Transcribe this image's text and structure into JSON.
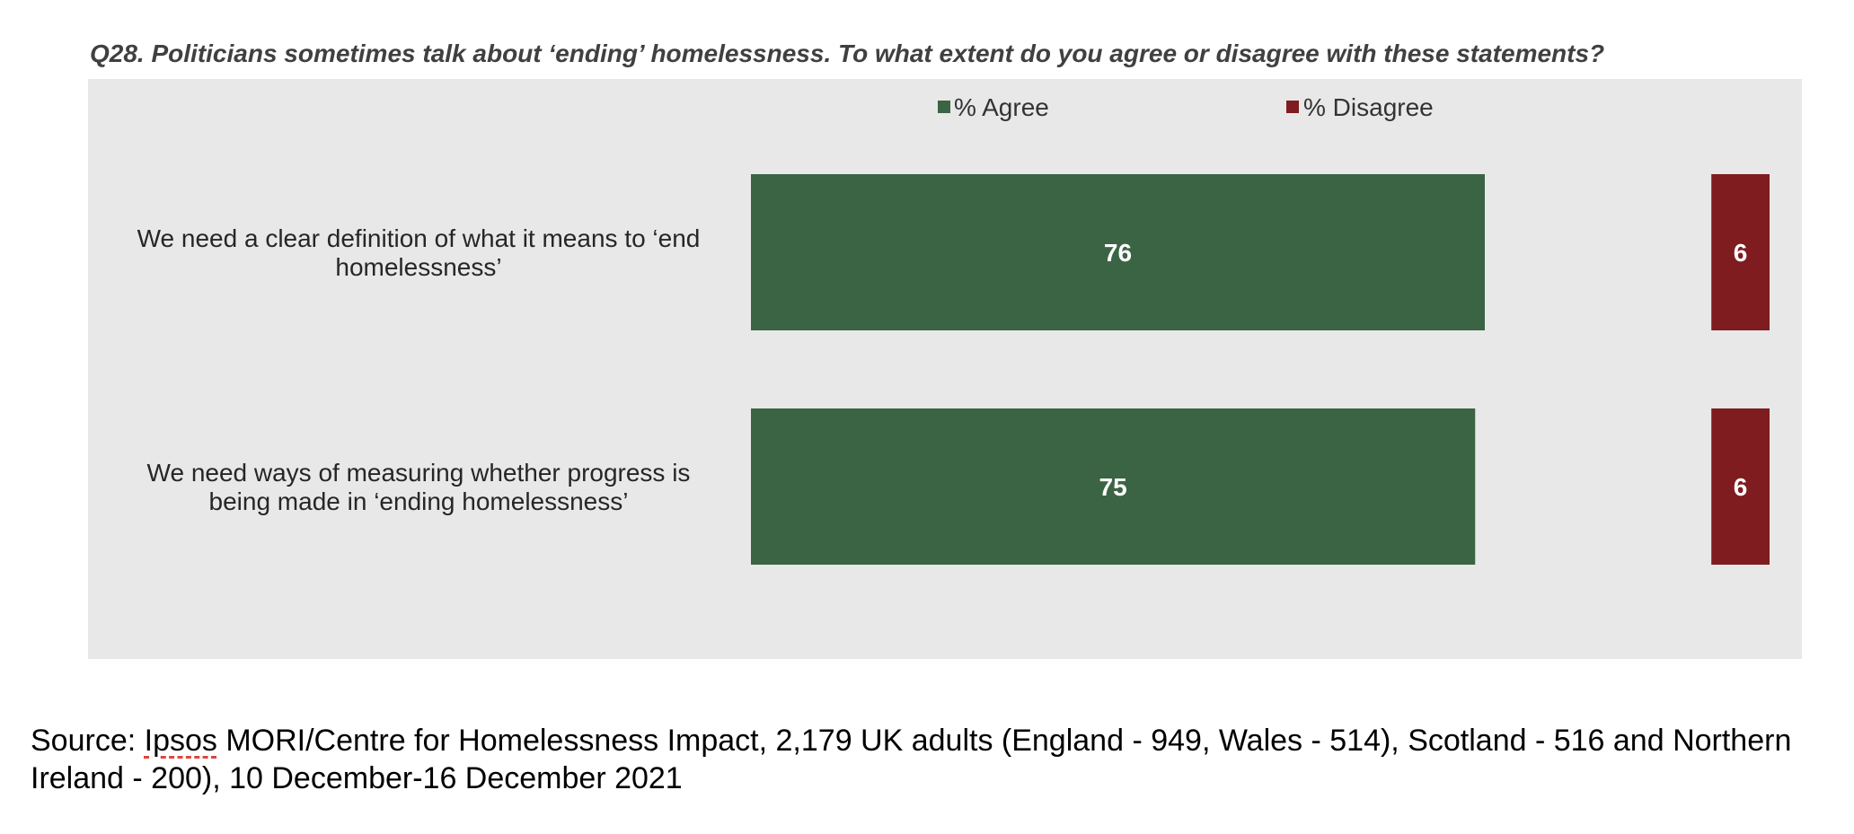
{
  "question": "Q28. Politicians sometimes talk about ‘ending’ homelessness. To what extent do you agree or disagree with these statements?",
  "chart_data": {
    "type": "bar",
    "orientation": "horizontal",
    "categories": [
      [
        "We need a clear definition of what it means to ‘end",
        "homelessness’"
      ],
      [
        "We need ways of measuring whether progress is",
        "being made in ‘ending homelessness’"
      ]
    ],
    "series": [
      {
        "name": "% Agree",
        "values": [
          76,
          75
        ],
        "color": "#3b6444"
      },
      {
        "name": "% Disagree",
        "values": [
          6,
          6
        ],
        "color": "#7f1c1f"
      }
    ],
    "xlim": [
      0,
      100
    ],
    "grid": false,
    "legend_position": "top"
  },
  "source": {
    "prefix": "Source: ",
    "flagged_word": "Ipsos",
    "rest": " MORI/Centre for Homelessness Impact, 2,179 UK adults (England - 949, Wales - 514), Scotland - 516 and Northern Ireland - 200), 10 December-16 December 2021"
  }
}
